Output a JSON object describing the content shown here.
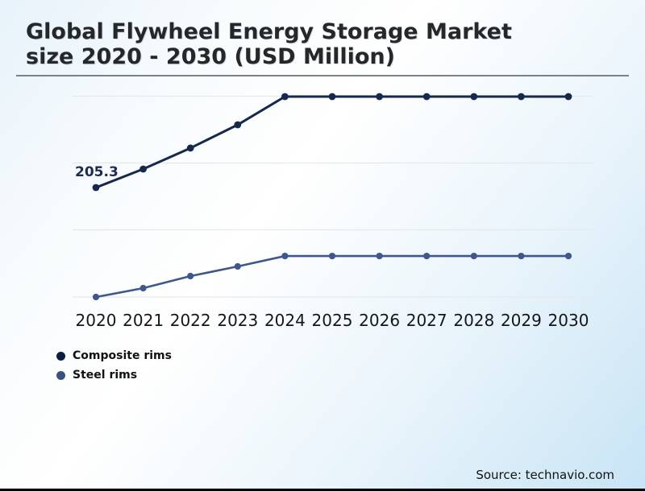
{
  "title": {
    "line1": "Global Flywheel Energy Storage Market",
    "line2": "size 2020 - 2030 (USD Million)"
  },
  "annotation": {
    "text": "205.3"
  },
  "source": "Source: technavio.com",
  "legend": [
    {
      "label": "Composite rims",
      "color": "#0c1f40"
    },
    {
      "label": "Steel rims",
      "color": "#3b5280"
    }
  ],
  "colors": {
    "composite_line": "#16284b",
    "steel_line": "#40578c",
    "gridline": "#e6e9eb",
    "title_text": "#25282b",
    "rule": "#7a8187",
    "background_blue": "#c8e4f5"
  },
  "chart_data": {
    "type": "line",
    "title": "Global Flywheel Energy Storage Market size 2020 - 2030 (USD Million)",
    "xlabel": "",
    "ylabel": "USD Million",
    "categories": [
      "2020",
      "2021",
      "2022",
      "2023",
      "2024",
      "2025",
      "2026",
      "2027",
      "2028",
      "2029",
      "2030"
    ],
    "series": [
      {
        "name": "Composite rims",
        "color": "#16284b",
        "values": [
          205.3,
          226.8,
          251.1,
          278.1,
          310.8,
          310.8,
          310.8,
          310.8,
          310.8,
          310.8,
          310.8
        ]
      },
      {
        "name": "Steel rims",
        "color": "#40578c",
        "values": [
          78.3,
          88.6,
          102.6,
          113.8,
          125.9,
          125.9,
          125.9,
          125.9,
          125.9,
          125.9,
          125.9
        ]
      }
    ],
    "data_labels": [
      {
        "series": "Composite rims",
        "category": "2020",
        "text": "205.3"
      }
    ],
    "ylim": [
      0,
      330
    ],
    "grid": "horizontal",
    "y_axis_ticks_visible": false,
    "legend_position": "bottom-left"
  }
}
